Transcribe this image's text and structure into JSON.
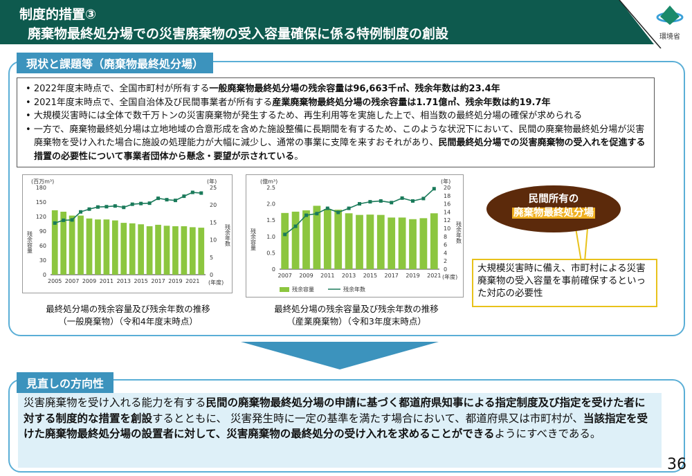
{
  "header": {
    "line1": "制度的措置③",
    "line2": "廃棄物最終処分場での災害廃棄物の受入容量確保に係る特例制度の創設",
    "logo_text": "環境省"
  },
  "section1": {
    "label": "現状と課題等（廃棄物最終処分場）",
    "bullets": [
      [
        {
          "t": "2022年度末時点で、全国市町村が所有する"
        },
        {
          "t": "一般廃棄物最終処分場の残余容量は96,663千㎥、残余年数は約23.4年",
          "b": 1
        }
      ],
      [
        {
          "t": "2021年度末時点で、全国自治体及び民間事業者が所有する"
        },
        {
          "t": "産業廃棄物最終処分場の残余容量は1.71億㎥、残余年数は約19.7年",
          "b": 1
        }
      ],
      [
        {
          "t": "大規模災害時には全体で数千万トンの災害廃棄物が発生するため、再生利用等を実施した上で、相当数の最終処分場の確保が求められる"
        }
      ],
      [
        {
          "t": "一方で、廃棄物最終処分場は立地地域の合意形成を含めた施設整備に長期間を有するため、このような状況下において、民間の廃棄物最終処分場が災害廃棄物を受け入れた場合に施設の処理能力が大幅に減少し、通常の事業に支障を来すおそれがあり、"
        },
        {
          "t": "民間最終処分場での災害廃棄物の受入れを促進する措置の必要性について事業者団体から懸念・要望が示されている",
          "b": 1
        },
        {
          "t": "。"
        }
      ]
    ],
    "caption1": [
      "最終処分場の残余容量及び残余年数の推移",
      "（一般廃棄物）（令和4年度末時点）"
    ],
    "caption2": [
      "最終処分場の残余容量及び残余年数の推移",
      "（産業廃棄物）（令和3年度末時点）"
    ],
    "oval": {
      "line1": "民間所有の",
      "line2": "廃棄物最終処分場"
    },
    "note": "大規模災害時に備え、市町村による災害廃棄物の受入容量を事前確保するといった対応の必要性"
  },
  "section2": {
    "label": "見直しの方向性",
    "body": [
      {
        "t": "災害廃棄物を受け入れる能力を有する"
      },
      {
        "t": "民間の廃棄物最終処分場の申請に基づく都道府県知事による指定制度及び指定を受けた者に対する制度的な措置を創設",
        "b": 1
      },
      {
        "t": "するとともに、 災害発生時に一定の基準を満たす場合において、都道府県又は市町村が、"
      },
      {
        "t": "当該指定を受けた廃棄物最終処分場の設置者に対して、災害廃棄物の最終処分の受け入れを求めることができる",
        "b": 1
      },
      {
        "t": "ようにすべきである。"
      }
    ]
  },
  "page_number": "36",
  "colors": {
    "bar": "#8cc63f",
    "line": "#1a7a5a",
    "header": "#0e5a4e",
    "accent": "#3c93bd"
  },
  "chart_data": [
    {
      "type": "bar+line",
      "title": "最終処分場の残余容量及び残余年数の推移（一般廃棄物）",
      "x": [
        2005,
        2006,
        2007,
        2008,
        2009,
        2010,
        2011,
        2012,
        2013,
        2014,
        2015,
        2016,
        2017,
        2018,
        2019,
        2020,
        2021,
        2022
      ],
      "xticks": [
        "2005",
        "2007",
        "2009",
        "2011",
        "2013",
        "2015",
        "2017",
        "2019",
        "2021"
      ],
      "xunit": "(年度)",
      "ylabel": "残余容量",
      "yunit": "(百万m³)",
      "ylim": [
        0,
        180
      ],
      "yticks": [
        0,
        30,
        60,
        90,
        120,
        150,
        180
      ],
      "y2label": "残余年数",
      "y2unit": "(年)",
      "y2lim": [
        0,
        25
      ],
      "y2ticks": [
        0,
        5,
        10,
        15,
        20,
        25
      ],
      "series": [
        {
          "name": "残余容量",
          "kind": "bar",
          "values": [
            133,
            130,
            122,
            122,
            116,
            114,
            114,
            112,
            107,
            106,
            104,
            100,
            103,
            101,
            100,
            100,
            98,
            97
          ]
        },
        {
          "name": "残余年数",
          "kind": "line",
          "axis": "y2",
          "values": [
            14.8,
            15.6,
            15.7,
            18.0,
            18.8,
            19.4,
            19.5,
            19.7,
            19.3,
            20.2,
            20.4,
            20.5,
            21.9,
            21.5,
            21.3,
            22.5,
            23.6,
            23.4
          ]
        }
      ],
      "legend": []
    },
    {
      "type": "bar+line",
      "title": "最終処分場の残余容量及び残余年数の推移（産業廃棄物）",
      "x": [
        2007,
        2008,
        2009,
        2010,
        2011,
        2012,
        2013,
        2014,
        2015,
        2016,
        2017,
        2018,
        2019,
        2020,
        2021
      ],
      "xticks": [
        "2007",
        "2009",
        "2011",
        "2013",
        "2015",
        "2017",
        "2019",
        "2021"
      ],
      "xunit": "(年度)",
      "ylabel": "残余容量",
      "yunit": "(億m³)",
      "ylim": [
        0,
        2.5
      ],
      "yticks": [
        "0",
        "0.5",
        "1.0",
        "1.5",
        "2.0",
        "2.5"
      ],
      "y2label": "残余年数",
      "y2unit": "(年)",
      "y2lim": [
        0,
        20
      ],
      "y2ticks": [
        0,
        2,
        4,
        6,
        8,
        10,
        12,
        14,
        16,
        18,
        20
      ],
      "series": [
        {
          "name": "残余容量",
          "kind": "bar",
          "values": [
            1.72,
            1.76,
            1.8,
            1.94,
            1.84,
            1.82,
            1.71,
            1.66,
            1.67,
            1.66,
            1.58,
            1.58,
            1.53,
            1.56,
            1.71
          ]
        },
        {
          "name": "残余年数",
          "kind": "line",
          "axis": "y2",
          "values": [
            8.5,
            10.5,
            13.2,
            13.6,
            14.9,
            13.9,
            14.9,
            16.0,
            16.5,
            16.7,
            16.3,
            17.4,
            16.7,
            17.3,
            19.7
          ]
        }
      ],
      "legend": [
        "残余容量",
        "残余年数"
      ]
    }
  ]
}
